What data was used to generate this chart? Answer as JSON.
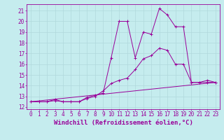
{
  "xlabel": "Windchill (Refroidissement éolien,°C)",
  "background_color": "#c5ecee",
  "line_color": "#990099",
  "grid_color": "#b0d8dc",
  "xlim": [
    -0.5,
    23.5
  ],
  "ylim": [
    11.8,
    21.6
  ],
  "xticks": [
    0,
    1,
    2,
    3,
    4,
    5,
    6,
    7,
    8,
    9,
    10,
    11,
    12,
    13,
    14,
    15,
    16,
    17,
    18,
    19,
    20,
    21,
    22,
    23
  ],
  "yticks": [
    12,
    13,
    14,
    15,
    16,
    17,
    18,
    19,
    20,
    21
  ],
  "line1_x": [
    0,
    1,
    2,
    3,
    4,
    5,
    6,
    7,
    8,
    9,
    10,
    11,
    12,
    13,
    14,
    15,
    16,
    17,
    18,
    19,
    20,
    21,
    22,
    23
  ],
  "line1_y": [
    12.5,
    12.5,
    12.5,
    12.7,
    12.5,
    12.5,
    12.5,
    12.9,
    13.1,
    13.3,
    16.6,
    20.0,
    20.0,
    16.6,
    19.0,
    18.8,
    21.2,
    20.6,
    19.5,
    19.5,
    14.3,
    14.3,
    14.5,
    14.3
  ],
  "line2_x": [
    0,
    1,
    2,
    3,
    4,
    5,
    6,
    7,
    8,
    9,
    10,
    11,
    12,
    13,
    14,
    15,
    16,
    17,
    18,
    19,
    20,
    21,
    22,
    23
  ],
  "line2_y": [
    12.5,
    12.5,
    12.5,
    12.6,
    12.5,
    12.5,
    12.5,
    12.8,
    13.0,
    13.5,
    14.2,
    14.5,
    14.7,
    15.5,
    16.5,
    16.8,
    17.5,
    17.3,
    16.0,
    16.0,
    14.3,
    14.3,
    14.3,
    14.3
  ],
  "line3_x": [
    0,
    23
  ],
  "line3_y": [
    12.5,
    14.3
  ],
  "fontsize_tick": 5.5,
  "fontsize_label": 6.5
}
